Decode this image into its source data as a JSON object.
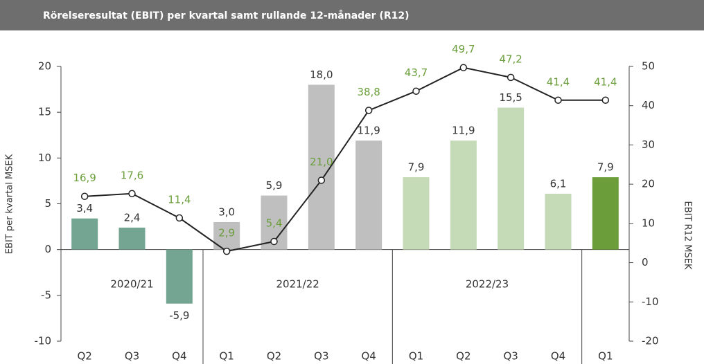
{
  "chart_data": {
    "type": "bar_line",
    "title": "Rörelseresultat (EBIT) per kvartal samt rullande 12-månader (R12)",
    "ylabel": "EBIT per kvartal MSEK",
    "y2label": "EBIT R12 MSEK",
    "groups": [
      {
        "name": "2020/21",
        "categories": [
          "Q2",
          "Q3",
          "Q4"
        ]
      },
      {
        "name": "2021/22",
        "categories": [
          "Q1",
          "Q2",
          "Q3",
          "Q4"
        ]
      },
      {
        "name": "2022/23",
        "categories": [
          "Q1",
          "Q2",
          "Q3",
          "Q4"
        ]
      },
      {
        "name": null,
        "categories": [
          "Q1"
        ]
      }
    ],
    "series": [
      {
        "name": null,
        "type": "bar",
        "colors": [
          "#73a592",
          "#73a592",
          "#73a592",
          "#bfbfbf",
          "#bfbfbf",
          "#bfbfbf",
          "#bfbfbf",
          "#c5dab6",
          "#c5dab6",
          "#c5dab6",
          "#c5dab6",
          "#6b9e3b"
        ],
        "values": [
          3.4,
          2.4,
          -5.9,
          3.0,
          5.9,
          18.0,
          11.9,
          7.9,
          11.9,
          15.5,
          6.1,
          7.9
        ],
        "value_labels": [
          "3,4",
          "2,4",
          "-5,9",
          "3,0",
          "5,9",
          "18,0",
          "11,9",
          "7,9",
          "11,9",
          "15,5",
          "6,1",
          "7,9"
        ],
        "label_color": "#333333"
      },
      {
        "name": null,
        "type": "line",
        "axis": "y2",
        "color": "#222222",
        "label_color": "#6b9e3b",
        "values": [
          16.9,
          17.6,
          11.4,
          2.9,
          5.4,
          21.0,
          38.8,
          43.7,
          49.7,
          47.2,
          41.4,
          41.4
        ],
        "value_labels": [
          "16,9",
          "17,6",
          "11,4",
          "2,9",
          "5,4",
          "21,0",
          "38,8",
          "43,7",
          "49,7",
          "47,2",
          "41,4",
          "41,4"
        ]
      }
    ],
    "ylim": [
      -10,
      20
    ],
    "yticks": [
      -10,
      -5,
      0,
      5,
      10,
      15,
      20
    ],
    "y2lim": [
      -20,
      50
    ],
    "y2ticks": [
      -20,
      -10,
      0,
      10,
      20,
      30,
      40,
      50
    ]
  }
}
